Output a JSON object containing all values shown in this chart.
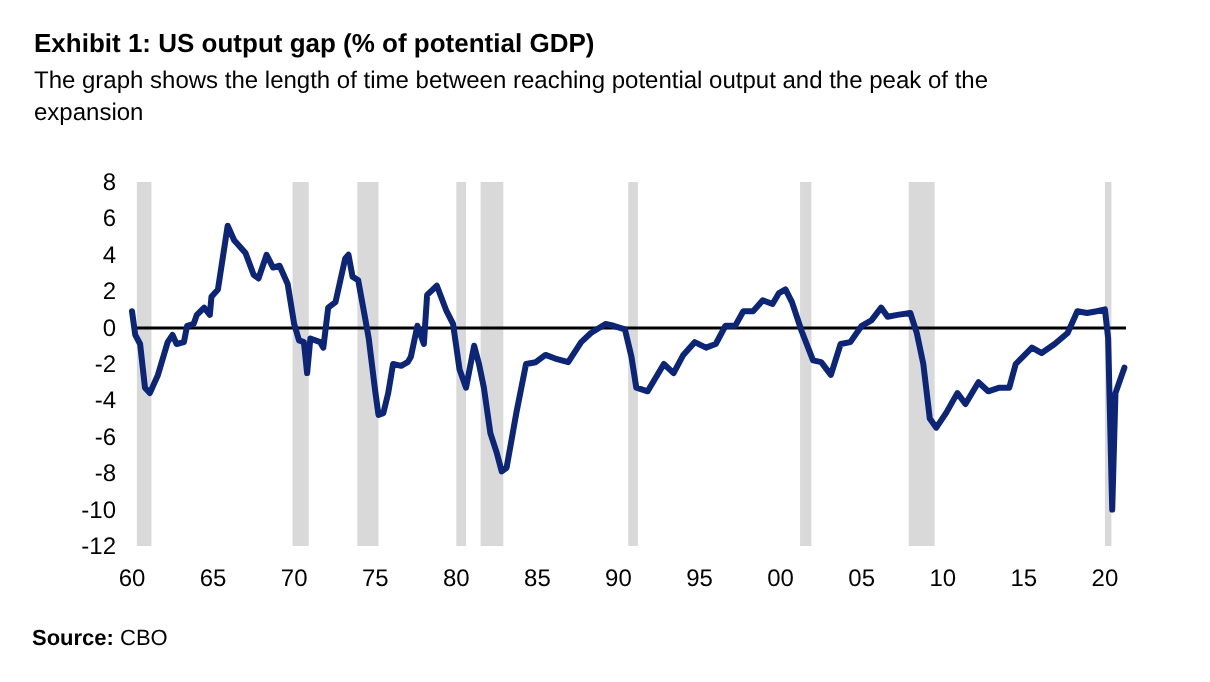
{
  "chart_data": {
    "type": "line",
    "title": "Exhibit 1: US output gap (% of potential GDP)",
    "subtitle": "The graph shows the length of time between reaching potential output and the peak of the expansion",
    "annotations": [
      "Source: CBO"
    ],
    "x": [
      1960.0,
      1960.2,
      1960.5,
      1960.8,
      1961.1,
      1961.6,
      1962.2,
      1962.5,
      1962.75,
      1963.2,
      1963.4,
      1963.8,
      1964.0,
      1964.45,
      1964.8,
      1964.9,
      1965.3,
      1965.9,
      1966.3,
      1967.0,
      1967.5,
      1967.8,
      1968.3,
      1968.7,
      1969.1,
      1969.6,
      1970.0,
      1970.3,
      1970.6,
      1970.8,
      1971.0,
      1971.6,
      1971.8,
      1972.1,
      1972.55,
      1973.15,
      1973.35,
      1973.6,
      1973.95,
      1974.4,
      1974.6,
      1975.0,
      1975.2,
      1975.5,
      1975.8,
      1976.1,
      1976.6,
      1977.0,
      1977.2,
      1977.6,
      1978.0,
      1978.2,
      1978.8,
      1979.4,
      1979.8,
      1980.2,
      1980.6,
      1981.1,
      1981.4,
      1981.7,
      1982.1,
      1982.5,
      1982.8,
      1983.1,
      1983.7,
      1984.3,
      1984.9,
      1985.5,
      1986.1,
      1986.9,
      1987.7,
      1988.3,
      1989.2,
      1989.7,
      1990.4,
      1990.8,
      1991.1,
      1991.8,
      1992.8,
      1993.4,
      1994.0,
      1994.7,
      1995.4,
      1996.0,
      1996.6,
      1997.2,
      1997.7,
      1998.3,
      1998.9,
      1999.5,
      1999.9,
      2000.3,
      2000.7,
      2001.3,
      2002.0,
      2002.5,
      2003.1,
      2003.7,
      2004.3,
      2005.0,
      2005.6,
      2006.2,
      2006.6,
      2007.2,
      2008.0,
      2008.4,
      2008.8,
      2009.2,
      2009.6,
      2010.2,
      2010.9,
      2011.4,
      2012.2,
      2012.8,
      2013.5,
      2014.1,
      2014.5,
      2015.5,
      2016.1,
      2016.9,
      2017.7,
      2018.3,
      2018.9,
      2019.5,
      2020.0,
      2020.2,
      2020.45,
      2020.65,
      2021.2
    ],
    "series": [
      {
        "color": "#0c2577",
        "values": [
          0.9,
          -0.4,
          -0.9,
          -3.3,
          -3.6,
          -2.6,
          -0.8,
          -0.4,
          -0.9,
          -0.8,
          0.1,
          0.2,
          0.7,
          1.1,
          0.7,
          1.7,
          2.1,
          5.6,
          4.8,
          4.1,
          2.9,
          2.7,
          4.0,
          3.3,
          3.4,
          2.4,
          0.2,
          -0.7,
          -0.8,
          -2.5,
          -0.6,
          -0.8,
          -1.1,
          1.1,
          1.4,
          3.8,
          4.0,
          2.8,
          2.6,
          0.4,
          -0.6,
          -3.5,
          -4.8,
          -4.7,
          -3.6,
          -2.0,
          -2.1,
          -1.9,
          -1.6,
          0.1,
          -0.9,
          1.8,
          2.3,
          0.9,
          0.2,
          -2.3,
          -3.3,
          -1.0,
          -2.0,
          -3.3,
          -5.8,
          -6.9,
          -7.9,
          -7.7,
          -4.7,
          -2.0,
          -1.9,
          -1.5,
          -1.7,
          -1.9,
          -0.8,
          -0.3,
          0.2,
          0.1,
          -0.1,
          -1.6,
          -3.3,
          -3.5,
          -2.0,
          -2.5,
          -1.5,
          -0.8,
          -1.1,
          -0.9,
          0.1,
          0.1,
          0.9,
          0.9,
          1.5,
          1.3,
          1.9,
          2.1,
          1.4,
          -0.2,
          -1.8,
          -1.9,
          -2.6,
          -0.9,
          -0.8,
          0.1,
          0.4,
          1.1,
          0.6,
          0.7,
          0.8,
          -0.3,
          -2.0,
          -5.0,
          -5.5,
          -4.7,
          -3.6,
          -4.2,
          -3.0,
          -3.5,
          -3.3,
          -3.3,
          -2.0,
          -1.1,
          -1.4,
          -0.9,
          -0.3,
          0.9,
          0.8,
          0.9,
          1.0,
          -0.6,
          -10.0,
          -3.6,
          -2.2
        ]
      }
    ],
    "xlim": [
      1960,
      2021.3
    ],
    "xticks": [
      {
        "value": 1960,
        "label": "60"
      },
      {
        "value": 1965,
        "label": "65"
      },
      {
        "value": 1970,
        "label": "70"
      },
      {
        "value": 1975,
        "label": "75"
      },
      {
        "value": 1980,
        "label": "80"
      },
      {
        "value": 1985,
        "label": "85"
      },
      {
        "value": 1990,
        "label": "90"
      },
      {
        "value": 1995,
        "label": "95"
      },
      {
        "value": 2000,
        "label": "00"
      },
      {
        "value": 2005,
        "label": "05"
      },
      {
        "value": 2010,
        "label": "10"
      },
      {
        "value": 2015,
        "label": "15"
      },
      {
        "value": 2020,
        "label": "20"
      }
    ],
    "ylim": [
      -12,
      8
    ],
    "yticks": [
      -12,
      -10,
      -8,
      -6,
      -4,
      -2,
      0,
      2,
      4,
      6,
      8
    ],
    "ref_lines": [
      {
        "axis": "y",
        "value": 0,
        "color": "#000000"
      }
    ],
    "bands": [
      {
        "axis": "x",
        "from": 1960.3,
        "to": 1961.2,
        "color": "#d9d9d9"
      },
      {
        "axis": "x",
        "from": 1969.9,
        "to": 1970.9,
        "color": "#d9d9d9"
      },
      {
        "axis": "x",
        "from": 1973.9,
        "to": 1975.2,
        "color": "#d9d9d9"
      },
      {
        "axis": "x",
        "from": 1980.0,
        "to": 1980.6,
        "color": "#d9d9d9"
      },
      {
        "axis": "x",
        "from": 1981.5,
        "to": 1982.9,
        "color": "#d9d9d9"
      },
      {
        "axis": "x",
        "from": 1990.6,
        "to": 1991.2,
        "color": "#d9d9d9"
      },
      {
        "axis": "x",
        "from": 2001.2,
        "to": 2001.9,
        "color": "#d9d9d9"
      },
      {
        "axis": "x",
        "from": 2007.9,
        "to": 2009.5,
        "color": "#d9d9d9"
      },
      {
        "axis": "x",
        "from": 2020.0,
        "to": 2020.4,
        "color": "#d9d9d9"
      }
    ],
    "grid": false,
    "marker": "none",
    "line_style": "solid"
  }
}
